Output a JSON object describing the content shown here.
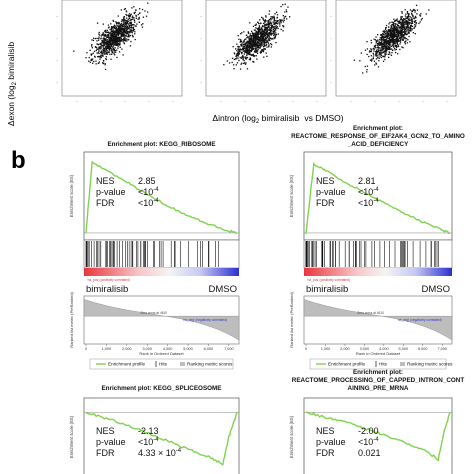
{
  "panel_b_letter": "b",
  "scatter": {
    "ylabel": "Δexon (log",
    "ylabel_sub": "2",
    "ylabel_tail": " bimiralisib",
    "xlabel_prefix": "Δintron (log",
    "xlabel_sub": "2",
    "xlabel_mid": " bimiralisib",
    "xlabel_tail": "vs DMSO)"
  },
  "gsea_common": {
    "y_axis_title": "Enrichment score (ES)",
    "rank_axis_title": "Ranked list metric (PreRanked)",
    "x_axis_title": "Rank in Ordered Dataset",
    "legend_profile": "Enrichment profile",
    "legend_hits": "Hits",
    "legend_ranking": "Ranking metric scores",
    "pos_label": "'na_pos' (positively correlated)",
    "neg_label": "'na_neg' (negatively correlated)",
    "zero_cross": "Zero cross at 4610",
    "left_condition": "bimiralisib",
    "right_condition": "DMSO",
    "line_color": "#7fd34e"
  },
  "panels": [
    {
      "title": "Enrichment plot: KEGG_RIBOSOME",
      "title2": "",
      "nes_label": "NES",
      "nes": "2.85",
      "pval_label": "p-value",
      "pval": "<10",
      "pval_exp": "-4",
      "fdr_label": "FDR",
      "fdr": "<10",
      "fdr_exp": "-4"
    },
    {
      "title": "Enrichment plot:",
      "title2": "REACTOME_RESPONSE_OF_EIF2AK4_GCN2_TO_AMINO",
      "title3": "_ACID_DEFICIENCY",
      "nes_label": "NES",
      "nes": "2.81",
      "pval_label": "p-value",
      "pval": "<10",
      "pval_exp": "-4",
      "fdr_label": "FDR",
      "fdr": "<10",
      "fdr_exp": "-4"
    },
    {
      "title": "Enrichment plot: KEGG_SPLICEOSOME",
      "title2": "",
      "nes_label": "NES",
      "nes": "-2.13",
      "pval_label": "p-value",
      "pval": "<10",
      "pval_exp": "-4",
      "fdr_label": "FDR",
      "fdr": "4.33 × 10",
      "fdr_exp": "-4"
    },
    {
      "title": "Enrichment plot:",
      "title2": "REACTOME_PROCESSING_OF_CAPPED_INTRON_CONT",
      "title3": "AINING_PRE_MRNA",
      "nes_label": "NES",
      "nes": "-2.00",
      "pval_label": "p-value",
      "pval": "<10",
      "pval_exp": "-4",
      "fdr_label": "FDR",
      "fdr": "0.021",
      "fdr_exp": ""
    }
  ],
  "chart_data": [
    {
      "type": "scatter",
      "description_series": "three scatter panels of Δexon vs Δintron",
      "series": [
        {
          "values": "dense positively correlated point cloud"
        }
      ],
      "xlabel": "Δintron (log2 bimiralisib vs DMSO)",
      "ylabel": "Δexon (log2 bimiralisib"
    },
    {
      "type": "line",
      "title": "Enrichment plot: KEGG_RIBOSOME",
      "x_ticks": [
        "0",
        "1,000",
        "2,000",
        "3,000",
        "4,000",
        "5,000",
        "6,000",
        "7,000"
      ],
      "series": [
        {
          "x": [
            0,
            300,
            1000,
            2000,
            3000,
            4000,
            5000,
            6000,
            7000,
            7400
          ],
          "values": [
            0,
            0.7,
            0.62,
            0.5,
            0.38,
            0.27,
            0.17,
            0.09,
            0.02,
            0
          ]
        }
      ]
    },
    {
      "type": "line",
      "title": "REACTOME_RESPONSE_OF_EIF2AK4_GCN2_TO_AMINO_ACID_DEFICIENCY",
      "x_ticks": [
        "0",
        "1,000",
        "2,000",
        "3,000",
        "4,000",
        "5,000",
        "6,000",
        "7,000"
      ],
      "series": [
        {
          "x": [
            0,
            400,
            1000,
            2000,
            3000,
            4000,
            5000,
            6000,
            7000,
            7400
          ],
          "values": [
            0,
            0.68,
            0.62,
            0.5,
            0.4,
            0.3,
            0.2,
            0.11,
            0.03,
            0
          ]
        }
      ]
    },
    {
      "type": "line",
      "title": "Enrichment plot: KEGG_SPLICEOSOME",
      "series": [
        {
          "x": [
            0,
            1000,
            2000,
            3000,
            4000,
            5000,
            6000,
            6700,
            7000,
            7400
          ],
          "values": [
            0,
            -0.05,
            -0.1,
            -0.17,
            -0.23,
            -0.3,
            -0.36,
            -0.42,
            -0.2,
            0
          ]
        }
      ]
    },
    {
      "type": "line",
      "title": "REACTOME_PROCESSING_OF_CAPPED_INTRON_CONTAINING_PRE_MRNA",
      "series": [
        {
          "x": [
            0,
            1000,
            2000,
            3000,
            4000,
            5000,
            6000,
            6800,
            7100,
            7400
          ],
          "values": [
            0,
            -0.04,
            -0.08,
            -0.13,
            -0.18,
            -0.24,
            -0.3,
            -0.38,
            -0.15,
            0
          ]
        }
      ]
    }
  ]
}
